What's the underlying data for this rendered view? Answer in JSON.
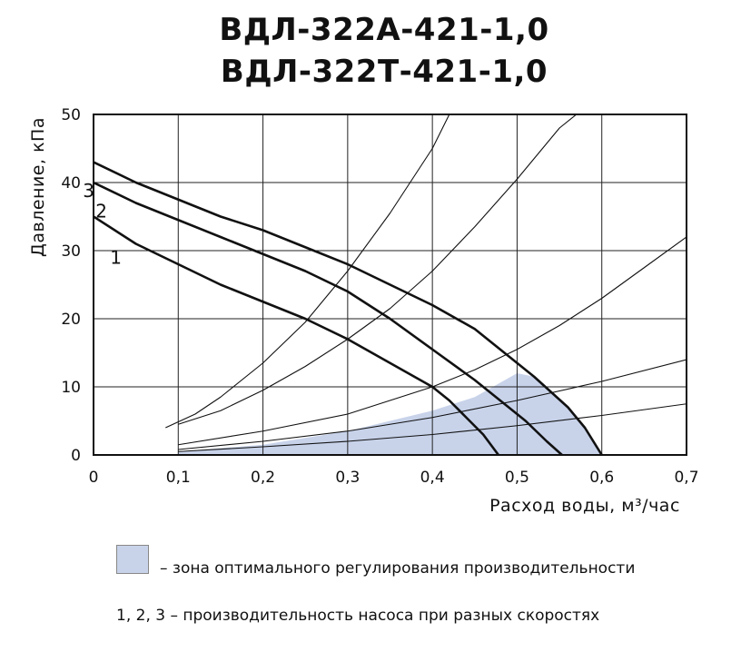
{
  "title": [
    "ВДЛ-322А-421-1,0",
    "ВДЛ-322Т-421-1,0"
  ],
  "legend": {
    "zone": "– зона оптимального регулирования производительности",
    "speeds": "1, 2, 3 – производительность насоса при разных скоростях"
  },
  "colors": {
    "zone": "#c8d3ea",
    "curves": "#111111",
    "grid": "#222222"
  },
  "chart_data": {
    "type": "line",
    "xlabel": "Расход воды, м³/час",
    "ylabel": "Давление, кПа",
    "xlim": [
      0,
      0.7
    ],
    "ylim": [
      0,
      50
    ],
    "x_ticks": [
      "0",
      "0,1",
      "0,2",
      "0,3",
      "0,4",
      "0,5",
      "0,6",
      "0,7"
    ],
    "y_ticks": [
      "0",
      "10",
      "20",
      "30",
      "40",
      "50"
    ],
    "grid": true,
    "series": [
      {
        "name": "1",
        "points": [
          [
            0,
            35
          ],
          [
            0.05,
            31
          ],
          [
            0.1,
            28
          ],
          [
            0.15,
            25
          ],
          [
            0.2,
            22.5
          ],
          [
            0.25,
            20
          ],
          [
            0.3,
            17
          ],
          [
            0.35,
            13.5
          ],
          [
            0.4,
            10
          ],
          [
            0.42,
            8
          ],
          [
            0.44,
            5.5
          ],
          [
            0.46,
            3
          ],
          [
            0.478,
            0
          ]
        ]
      },
      {
        "name": "2",
        "points": [
          [
            0,
            40
          ],
          [
            0.05,
            37
          ],
          [
            0.1,
            34.5
          ],
          [
            0.15,
            32
          ],
          [
            0.2,
            29.5
          ],
          [
            0.25,
            27
          ],
          [
            0.3,
            24
          ],
          [
            0.35,
            20
          ],
          [
            0.4,
            15.5
          ],
          [
            0.45,
            11
          ],
          [
            0.48,
            8
          ],
          [
            0.51,
            5
          ],
          [
            0.535,
            2
          ],
          [
            0.553,
            0
          ]
        ]
      },
      {
        "name": "3",
        "points": [
          [
            0,
            43
          ],
          [
            0.05,
            40
          ],
          [
            0.1,
            37.5
          ],
          [
            0.15,
            35
          ],
          [
            0.2,
            33
          ],
          [
            0.25,
            30.5
          ],
          [
            0.3,
            28
          ],
          [
            0.35,
            25
          ],
          [
            0.4,
            22
          ],
          [
            0.45,
            18.5
          ],
          [
            0.48,
            15.5
          ],
          [
            0.52,
            11.5
          ],
          [
            0.56,
            7
          ],
          [
            0.58,
            4
          ],
          [
            0.6,
            0
          ]
        ]
      }
    ],
    "system_curves": [
      [
        [
          0.085,
          4
        ],
        [
          0.12,
          6
        ],
        [
          0.15,
          8.5
        ],
        [
          0.2,
          13.5
        ],
        [
          0.25,
          19.5
        ],
        [
          0.3,
          27
        ],
        [
          0.35,
          35.5
        ],
        [
          0.4,
          45
        ],
        [
          0.42,
          50
        ]
      ],
      [
        [
          0.1,
          4.5
        ],
        [
          0.15,
          6.5
        ],
        [
          0.2,
          9.5
        ],
        [
          0.25,
          13
        ],
        [
          0.3,
          17
        ],
        [
          0.35,
          21.5
        ],
        [
          0.4,
          27
        ],
        [
          0.45,
          33.5
        ],
        [
          0.5,
          40.5
        ],
        [
          0.55,
          48
        ],
        [
          0.57,
          50
        ]
      ],
      [
        [
          0.1,
          1.5
        ],
        [
          0.2,
          3.5
        ],
        [
          0.3,
          6
        ],
        [
          0.4,
          10
        ],
        [
          0.45,
          12.5
        ],
        [
          0.5,
          15.5
        ],
        [
          0.55,
          19
        ],
        [
          0.6,
          23
        ],
        [
          0.65,
          27.5
        ],
        [
          0.7,
          32
        ]
      ],
      [
        [
          0.1,
          0.8
        ],
        [
          0.2,
          2
        ],
        [
          0.3,
          3.5
        ],
        [
          0.4,
          5.5
        ],
        [
          0.5,
          8
        ],
        [
          0.6,
          10.8
        ],
        [
          0.7,
          14
        ]
      ],
      [
        [
          0.1,
          0.5
        ],
        [
          0.2,
          1.2
        ],
        [
          0.3,
          2
        ],
        [
          0.4,
          3
        ],
        [
          0.5,
          4.3
        ],
        [
          0.6,
          5.8
        ],
        [
          0.7,
          7.5
        ]
      ]
    ],
    "optimal_zone": [
      [
        0.1,
        0.5
      ],
      [
        0.2,
        1.5
      ],
      [
        0.3,
        3.5
      ],
      [
        0.4,
        6.5
      ],
      [
        0.45,
        8.5
      ],
      [
        0.5,
        12
      ],
      [
        0.52,
        11.5
      ],
      [
        0.56,
        7
      ],
      [
        0.58,
        4
      ],
      [
        0.6,
        0
      ],
      [
        0.1,
        0
      ]
    ]
  }
}
